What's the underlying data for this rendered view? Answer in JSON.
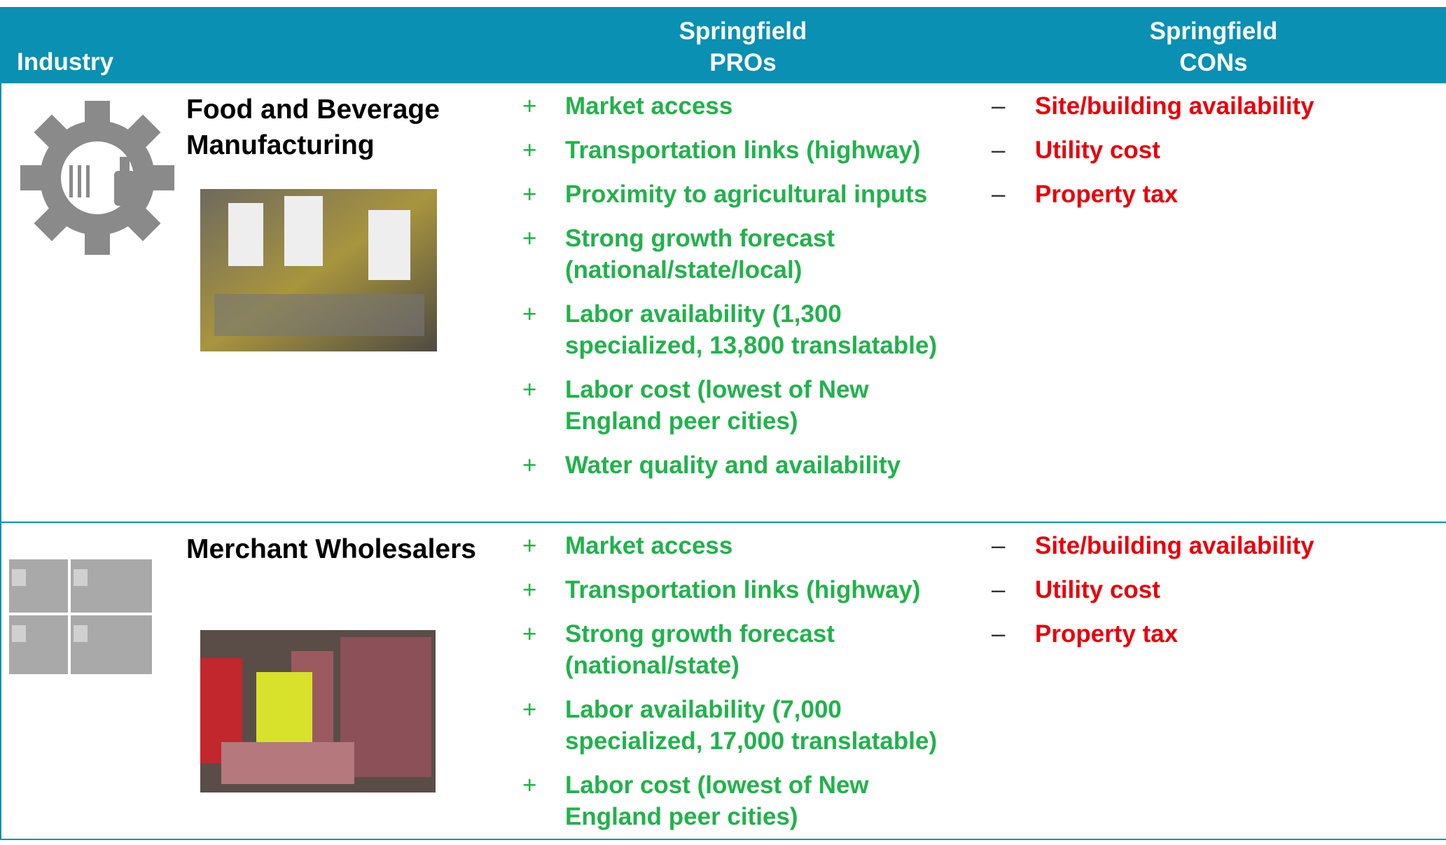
{
  "header": {
    "industry": "Industry",
    "pros": "Springfield PROs",
    "cons": "Springfield CONs"
  },
  "pro_marker": "+",
  "con_marker": "–",
  "rows": [
    {
      "name": "Food and Beverage Manufacturing",
      "pros": [
        "Market access",
        "Transportation links (highway)",
        "Proximity to agricultural inputs",
        "Strong growth forecast (national/state/local)",
        "Labor availability (1,300 specialized, 13,800 translatable)",
        "Labor cost (lowest of New England peer cities)",
        "Water quality and availability"
      ],
      "cons": [
        "Site/building availability",
        "Utility cost",
        "Property tax"
      ]
    },
    {
      "name": "Merchant Wholesalers",
      "pros": [
        "Market access",
        "Transportation links (highway)",
        "Strong growth forecast (national/state)",
        "Labor availability (7,000 specialized, 17,000 translatable)",
        "Labor cost (lowest of New England peer cities)"
      ],
      "cons": [
        "Site/building availability",
        "Utility cost",
        "Property tax"
      ]
    }
  ]
}
